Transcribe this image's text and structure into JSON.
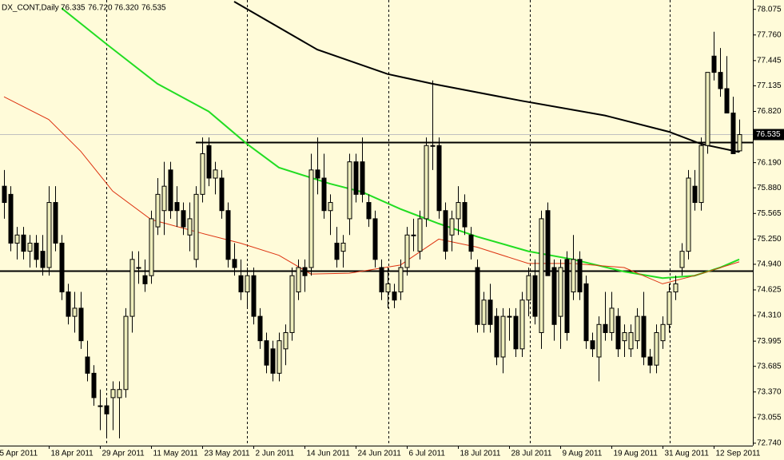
{
  "chart_data": {
    "type": "candlestick",
    "title": "DX_CONT,Daily",
    "last_labels": {
      "open": "76.335",
      "high": "76.720",
      "low": "76.320",
      "close": "76.535"
    },
    "xlim": [
      -0.625,
      117.125
    ],
    "ylim": [
      72.71,
      78.19
    ],
    "yticks": [
      78.075,
      {
        "value": 77.76,
        "label": "77.760"
      },
      77.445,
      77.135,
      {
        "value": 76.82,
        "label": "76.820"
      },
      {
        "value": 76.19,
        "label": "76.190"
      },
      {
        "value": 75.88,
        "label": "75.880"
      },
      75.565,
      {
        "value": 75.25,
        "label": "75.250"
      },
      {
        "value": 74.94,
        "label": "74.940"
      },
      74.625,
      {
        "value": 74.31,
        "label": "74.310"
      },
      73.995,
      73.685,
      {
        "value": 73.37,
        "label": "73.370"
      },
      73.055,
      {
        "value": 72.74,
        "label": "72.740"
      }
    ],
    "xticks": [
      {
        "value": -1,
        "label": "5 Apr 2011"
      },
      {
        "value": 7,
        "label": "18 Apr 2011"
      },
      {
        "value": 15,
        "label": "29 Apr 2011"
      },
      {
        "value": 23,
        "label": "11 May 2011"
      },
      {
        "value": 31,
        "label": "23 May 2011"
      },
      {
        "value": 39,
        "label": "2 Jun 2011"
      },
      {
        "value": 47,
        "label": "14 Jun 2011"
      },
      {
        "value": 55,
        "label": "24 Jun 2011"
      },
      {
        "value": 63,
        "label": "6 Jul 2011"
      },
      {
        "value": 71,
        "label": "18 Jul 2011"
      },
      {
        "value": 79,
        "label": "28 Jul 2011"
      },
      {
        "value": 87,
        "label": "9 Aug 2011"
      },
      {
        "value": 95,
        "label": "19 Aug 2011"
      },
      {
        "value": 103,
        "label": "31 Aug 2011"
      },
      {
        "value": 111,
        "label": "12 Sep 2011"
      }
    ],
    "bull_color": "#eeeebb",
    "bear_color": "#000000",
    "open": [
      75.9,
      75.8,
      75.2,
      75.3,
      75.1,
      75.2,
      75.1,
      74.9,
      75.7,
      75.2,
      74.6,
      74.3,
      74.4,
      73.8,
      73.6,
      73.2,
      73.2,
      73.3,
      73.3,
      73.4,
      74.3,
      74.9,
      74.8,
      74.8,
      75.4,
      75.6,
      76.1,
      75.7,
      75.6,
      75.3,
      75.0,
      75.8,
      76.4,
      76.0,
      76.0,
      75.6,
      75.0,
      74.8,
      74.6,
      74.8,
      74.3,
      74.0,
      73.9,
      73.6,
      73.9,
      74.1,
      74.6,
      74.9,
      74.9,
      76.1,
      76.0,
      75.6,
      75.2,
      75.1,
      75.5,
      76.2,
      76.2,
      75.7,
      75.5,
      74.9,
      74.6,
      74.6,
      74.6,
      74.9,
      75.3,
      75.1,
      75.5,
      76.4,
      76.4,
      75.6,
      75.3,
      75.5,
      75.7,
      75.3,
      74.9,
      74.2,
      74.5,
      74.3,
      73.8,
      74.3,
      74.3,
      73.9,
      74.5,
      74.8,
      74.1,
      75.6,
      74.9,
      74.3,
      75.0,
      74.6,
      75.0,
      74.7,
      74.0,
      73.8,
      74.2,
      74.1,
      74.3,
      74.0,
      73.9,
      74.0,
      74.3,
      73.8,
      73.7,
      74.0,
      74.2,
      74.6,
      74.9,
      75.1,
      75.9,
      75.7,
      76.4,
      77.5,
      77.3,
      77.1,
      76.8,
      76.335
    ],
    "high": [
      76.1,
      75.9,
      75.4,
      75.4,
      75.3,
      75.3,
      75.3,
      75.9,
      75.9,
      75.3,
      74.7,
      74.6,
      74.6,
      74.0,
      73.7,
      73.4,
      73.3,
      73.5,
      73.5,
      74.4,
      75.1,
      75.1,
      75.0,
      75.6,
      76.0,
      76.2,
      76.2,
      75.9,
      75.7,
      75.7,
      75.9,
      76.5,
      76.5,
      76.2,
      76.1,
      75.7,
      75.2,
      75.0,
      74.9,
      74.9,
      74.4,
      74.1,
      74.0,
      74.1,
      74.2,
      74.9,
      75.0,
      75.0,
      76.3,
      76.5,
      76.3,
      75.8,
      75.4,
      75.3,
      76.3,
      76.3,
      76.5,
      75.8,
      75.6,
      75.0,
      74.9,
      74.7,
      75.0,
      75.4,
      75.5,
      75.6,
      76.5,
      77.2,
      76.5,
      75.7,
      75.6,
      75.9,
      75.8,
      75.4,
      75.0,
      74.6,
      74.7,
      74.4,
      74.4,
      74.4,
      74.4,
      74.6,
      74.9,
      75.0,
      75.6,
      75.7,
      75.0,
      75.0,
      75.1,
      75.3,
      75.1,
      74.8,
      74.1,
      74.3,
      74.6,
      74.6,
      74.4,
      74.2,
      74.2,
      74.4,
      74.6,
      73.9,
      74.2,
      74.3,
      74.7,
      74.8,
      75.2,
      76.1,
      76.1,
      76.5,
      77.3,
      77.8,
      77.6,
      77.5,
      77.0,
      76.72
    ],
    "low": [
      75.5,
      75.1,
      75.0,
      75.0,
      74.9,
      74.9,
      74.8,
      74.8,
      75.1,
      74.5,
      74.2,
      74.1,
      73.9,
      73.5,
      73.2,
      72.9,
      72.8,
      72.9,
      72.8,
      73.3,
      74.1,
      74.7,
      74.6,
      74.7,
      75.3,
      75.3,
      75.5,
      75.4,
      75.3,
      75.1,
      74.9,
      75.7,
      75.9,
      75.8,
      75.5,
      74.9,
      74.8,
      74.5,
      74.4,
      74.2,
      73.9,
      73.6,
      73.5,
      73.5,
      73.7,
      74.0,
      74.5,
      74.6,
      74.8,
      75.8,
      75.5,
      75.3,
      74.9,
      74.9,
      75.3,
      75.7,
      75.7,
      75.4,
      74.9,
      74.5,
      74.4,
      74.4,
      74.5,
      74.8,
      75.1,
      75.0,
      75.4,
      76.1,
      75.5,
      75.0,
      75.1,
      75.3,
      75.3,
      75.0,
      74.1,
      74.1,
      74.1,
      73.7,
      73.6,
      74.0,
      73.8,
      73.8,
      74.3,
      74.2,
      73.9,
      74.8,
      74.0,
      73.9,
      74.0,
      74.5,
      74.5,
      73.9,
      73.8,
      73.5,
      74.0,
      74.0,
      73.8,
      73.8,
      73.8,
      73.9,
      73.7,
      73.6,
      73.6,
      73.9,
      74.1,
      74.5,
      74.8,
      75.0,
      75.6,
      75.6,
      76.3,
      77.2,
      77.0,
      76.8,
      76.3,
      76.32
    ],
    "close": [
      75.7,
      75.2,
      75.3,
      75.1,
      75.2,
      75.0,
      74.9,
      75.7,
      75.2,
      74.6,
      74.3,
      74.4,
      74.0,
      73.6,
      73.3,
      73.2,
      73.1,
      73.4,
      73.4,
      74.3,
      75.0,
      74.9,
      74.7,
      75.5,
      75.8,
      75.9,
      75.6,
      75.6,
      75.4,
      75.5,
      75.8,
      76.3,
      76.0,
      76.1,
      75.6,
      75.0,
      74.9,
      74.6,
      74.8,
      74.3,
      74.0,
      73.7,
      73.6,
      74.0,
      74.1,
      74.8,
      74.9,
      74.8,
      76.1,
      76.0,
      75.6,
      75.7,
      75.0,
      75.2,
      76.2,
      75.8,
      75.8,
      75.5,
      75.0,
      74.6,
      74.7,
      74.5,
      74.9,
      75.3,
      75.3,
      75.5,
      76.4,
      76.4,
      75.6,
      75.1,
      75.5,
      75.7,
      75.4,
      75.1,
      74.2,
      74.5,
      74.2,
      73.8,
      74.3,
      74.3,
      73.9,
      74.5,
      74.8,
      74.3,
      75.5,
      74.8,
      74.2,
      74.9,
      74.1,
      75.0,
      74.6,
      74.0,
      73.9,
      74.2,
      74.1,
      74.4,
      73.9,
      74.1,
      74.1,
      74.3,
      73.8,
      73.7,
      74.1,
      74.2,
      74.6,
      74.7,
      75.1,
      76.0,
      75.7,
      76.4,
      77.3,
      77.3,
      77.1,
      76.8,
      76.3,
      76.535
    ],
    "indicators": [
      {
        "color": "#000000",
        "width": 2,
        "x": [
          36,
          49,
          60,
          67,
          81,
          94,
          104,
          109,
          115
        ],
        "values": [
          78.17,
          77.58,
          77.28,
          77.16,
          76.95,
          76.77,
          76.57,
          76.42,
          76.32
        ]
      },
      {
        "color": "#22dd22",
        "width": 2,
        "x": [
          9,
          16,
          24,
          32,
          38,
          43,
          51,
          56,
          62,
          68,
          74,
          82,
          89,
          97,
          103,
          108,
          112,
          115
        ],
        "values": [
          78.09,
          77.65,
          77.16,
          76.82,
          76.42,
          76.13,
          75.93,
          75.83,
          75.62,
          75.44,
          75.28,
          75.1,
          75.0,
          74.85,
          74.77,
          74.8,
          74.9,
          75.0
        ]
      },
      {
        "color": "#dd3311",
        "width": 1,
        "x": [
          0,
          7,
          12,
          17,
          23,
          31,
          37,
          43,
          48,
          54,
          62,
          68,
          74,
          82,
          89,
          97,
          103,
          108,
          115
        ],
        "values": [
          77.0,
          76.72,
          76.33,
          75.84,
          75.49,
          75.32,
          75.2,
          75.05,
          74.82,
          74.83,
          74.93,
          75.25,
          75.15,
          74.95,
          74.95,
          74.9,
          74.7,
          74.8,
          74.97
        ]
      }
    ],
    "levels": [
      {
        "value": 76.44,
        "from": 30
      },
      {
        "value": 74.86
      }
    ]
  }
}
